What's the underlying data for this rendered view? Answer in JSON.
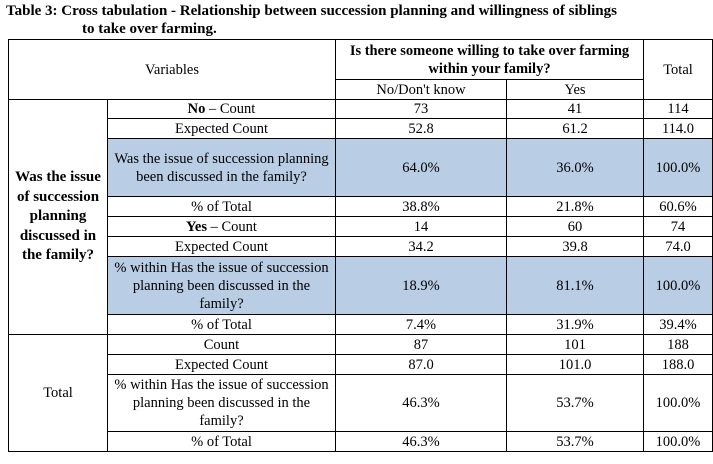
{
  "caption": {
    "label": "Table 3:",
    "text_line1": "Cross tabulation - Relationship between succession planning and willingness of siblings",
    "text_line2": "to take over farming."
  },
  "header": {
    "variables": "Variables",
    "question": "Is there someone willing to take over farming within your family?",
    "total": "Total",
    "col_no": "No/Don't know",
    "col_yes": "Yes"
  },
  "group1": {
    "label": "Was the issue of succession planning discussed in the family?",
    "rows": [
      {
        "label_bold": "No",
        "label_rest": " – Count",
        "no": "73",
        "yes": "41",
        "total": "114"
      },
      {
        "label": "Expected Count",
        "no": "52.8",
        "yes": "61.2",
        "total": "114.0"
      },
      {
        "label": "Was the issue of succession planning been discussed in the family?",
        "no": "64.0%",
        "yes": "36.0%",
        "total": "100.0%"
      },
      {
        "label": "% of Total",
        "no": "38.8%",
        "yes": "21.8%",
        "total": "60.6%"
      },
      {
        "label_bold": "Yes",
        "label_rest": " – Count",
        "no": "14",
        "yes": "60",
        "total": "74"
      },
      {
        "label": "Expected Count",
        "no": "34.2",
        "yes": "39.8",
        "total": "74.0"
      },
      {
        "label": "% within Has the issue of succession planning been discussed in the family?",
        "no": "18.9%",
        "yes": "81.1%",
        "total": "100.0%"
      },
      {
        "label": "% of Total",
        "no": "7.4%",
        "yes": "31.9%",
        "total": "39.4%"
      }
    ]
  },
  "group2": {
    "label": "Total",
    "rows": [
      {
        "label": "Count",
        "no": "87",
        "yes": "101",
        "total": "188"
      },
      {
        "label": "Expected Count",
        "no": "87.0",
        "yes": "101.0",
        "total": "188.0"
      },
      {
        "label": "% within Has the issue of succession planning been discussed in the family?",
        "no": "46.3%",
        "yes": "53.7%",
        "total": "100.0%"
      },
      {
        "label": "% of Total",
        "no": "46.3%",
        "yes": "53.7%",
        "total": "100.0%"
      }
    ]
  },
  "colors": {
    "highlight": "#b9cde4"
  }
}
